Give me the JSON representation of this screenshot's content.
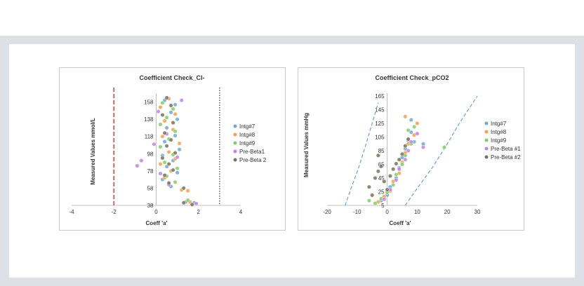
{
  "colors": {
    "background_band": "#dde1e5",
    "series": [
      "#6fa8dc",
      "#f6a04d",
      "#7fcf6a",
      "#c183e8",
      "#7a7358"
    ],
    "cutoff_red": "#e8403a",
    "cutoff_black": "#333333",
    "limit_blue": "#5b9bd5"
  },
  "chart_data": [
    {
      "type": "scatter",
      "title": "Coefficient Check_Cl-",
      "xlabel": "Coeff 'a'",
      "ylabel": "Measured Values mmol/L",
      "xlim": [
        -4,
        4
      ],
      "ylim": [
        38,
        165
      ],
      "x_ticks": [
        "-4",
        "-2",
        "0",
        "2",
        "4"
      ],
      "y_ticks": [
        "38",
        "58",
        "78",
        "98",
        "118",
        "138",
        "158"
      ],
      "grid": false,
      "legend_position": "right",
      "reference_lines": [
        {
          "type": "vertical",
          "x": -2,
          "style": "dashed",
          "color": "#e8403a"
        },
        {
          "type": "vertical",
          "x": 3,
          "style": "dotted",
          "color": "#333333"
        }
      ],
      "series": [
        {
          "name": "Intg#7",
          "points": [
            [
              0.4,
              160
            ],
            [
              0.9,
              155
            ],
            [
              0.7,
              146
            ],
            [
              1.0,
              138
            ],
            [
              0.5,
              128
            ],
            [
              0.9,
              119
            ],
            [
              0.4,
              112
            ],
            [
              1.1,
              103
            ],
            [
              0.3,
              96
            ],
            [
              0.8,
              90
            ],
            [
              0.5,
              83
            ],
            [
              1.0,
              76
            ],
            [
              0.3,
              68
            ],
            [
              0.7,
              60
            ],
            [
              1.4,
              42
            ],
            [
              1.8,
              41
            ]
          ]
        },
        {
          "name": "Intg#8",
          "points": [
            [
              0.6,
              162
            ],
            [
              0.2,
              152
            ],
            [
              0.9,
              144
            ],
            [
              0.4,
              136
            ],
            [
              0.8,
              126
            ],
            [
              0.3,
              118
            ],
            [
              1.1,
              110
            ],
            [
              0.6,
              100
            ],
            [
              0.9,
              92
            ],
            [
              0.2,
              86
            ],
            [
              0.7,
              78
            ],
            [
              0.4,
              70
            ],
            [
              1.2,
              56
            ],
            [
              1.5,
              55
            ],
            [
              1.6,
              42
            ]
          ]
        },
        {
          "name": "Intg#9",
          "points": [
            [
              0.3,
              157
            ],
            [
              0.8,
              150
            ],
            [
              0.5,
              140
            ],
            [
              0.2,
              132
            ],
            [
              0.9,
              124
            ],
            [
              0.6,
              115
            ],
            [
              0.2,
              106
            ],
            [
              0.8,
              97
            ],
            [
              0.4,
              88
            ],
            [
              1.0,
              81
            ],
            [
              0.5,
              72
            ],
            [
              0.9,
              65
            ],
            [
              1.5,
              44
            ]
          ]
        },
        {
          "name": "Pre-Beta1",
          "points": [
            [
              1.2,
              160
            ],
            [
              0.1,
              147
            ],
            [
              0.5,
              121
            ],
            [
              -0.1,
              109
            ],
            [
              1.0,
              94
            ],
            [
              -0.7,
              90
            ],
            [
              -0.9,
              84
            ],
            [
              0.2,
              75
            ],
            [
              0.6,
              62
            ],
            [
              1.9,
              40
            ]
          ]
        },
        {
          "name": "Pre-Beta 2",
          "points": [
            [
              0.5,
              163
            ],
            [
              0.7,
              154
            ],
            [
              0.3,
              143
            ],
            [
              0.8,
              134
            ],
            [
              0.4,
              122
            ],
            [
              0.7,
              114
            ],
            [
              0.5,
              107
            ],
            [
              0.9,
              99
            ],
            [
              0.3,
              93
            ],
            [
              0.6,
              86
            ],
            [
              0.8,
              79
            ],
            [
              0.4,
              73
            ],
            [
              0.6,
              64
            ],
            [
              1.3,
              58
            ],
            [
              1.3,
              41
            ],
            [
              1.7,
              39
            ]
          ]
        }
      ]
    },
    {
      "type": "scatter",
      "title": "Coefficient Check_pCO2",
      "xlabel": "Coeff 'a'",
      "ylabel": "Measured Values mmHg",
      "xlim": [
        -20,
        30
      ],
      "ylim": [
        5,
        165
      ],
      "x_ticks": [
        "-20",
        "-10",
        "0",
        "10",
        "20",
        "30"
      ],
      "y_ticks": [
        "5",
        "25",
        "45",
        "65",
        "85",
        "105",
        "125",
        "145",
        "165"
      ],
      "grid": false,
      "legend_position": "right",
      "limit_curves": [
        {
          "style": "dashed",
          "color": "#5b9bd5",
          "points": [
            [
              -14,
              5
            ],
            [
              -12,
              30
            ],
            [
              -9.5,
              60
            ],
            [
              -7,
              95
            ],
            [
              -5,
              125
            ],
            [
              -3,
              155
            ]
          ]
        },
        {
          "style": "dashed",
          "color": "#5b9bd5",
          "points": [
            [
              6,
              5
            ],
            [
              10,
              30
            ],
            [
              15,
              60
            ],
            [
              20,
              95
            ],
            [
              24,
              125
            ],
            [
              30,
              165
            ]
          ]
        }
      ],
      "series": [
        {
          "name": "Intg#7",
          "points": [
            [
              -2,
              12
            ],
            [
              0,
              20
            ],
            [
              1,
              32
            ],
            [
              3,
              45
            ],
            [
              4,
              60
            ],
            [
              5,
              75
            ],
            [
              6,
              88
            ],
            [
              7,
              100
            ],
            [
              8,
              112
            ],
            [
              8,
              130
            ],
            [
              9,
              98
            ],
            [
              12,
              95
            ]
          ]
        },
        {
          "name": "Intg#8",
          "points": [
            [
              -3,
              10
            ],
            [
              -1,
              18
            ],
            [
              1,
              26
            ],
            [
              2,
              40
            ],
            [
              4,
              52
            ],
            [
              5,
              68
            ],
            [
              6,
              82
            ],
            [
              7,
              95
            ],
            [
              9,
              108
            ],
            [
              6,
              135
            ],
            [
              10,
              125
            ]
          ]
        },
        {
          "name": "Intg#9",
          "points": [
            [
              -4,
              8
            ],
            [
              -6,
              12
            ],
            [
              -2,
              15
            ],
            [
              0,
              24
            ],
            [
              2,
              35
            ],
            [
              3,
              50
            ],
            [
              5,
              65
            ],
            [
              6,
              78
            ],
            [
              8,
              95
            ],
            [
              7,
              115
            ],
            [
              9,
              120
            ],
            [
              19,
              90
            ]
          ]
        },
        {
          "name": "Pre-Beta #1",
          "points": [
            [
              -1,
              14
            ],
            [
              1,
              28
            ],
            [
              3,
              42
            ],
            [
              4,
              58
            ],
            [
              6,
              72
            ],
            [
              7,
              85
            ],
            [
              8,
              98
            ],
            [
              10,
              110
            ],
            [
              12,
              90
            ]
          ]
        },
        {
          "name": "Pre-Beta #2",
          "points": [
            [
              -6,
              32
            ],
            [
              -4,
              45
            ],
            [
              -3,
              55
            ],
            [
              -2,
              62
            ],
            [
              -1,
              40
            ],
            [
              0,
              28
            ],
            [
              1,
              48
            ],
            [
              2,
              58
            ],
            [
              3,
              66
            ],
            [
              4,
              72
            ],
            [
              5,
              80
            ],
            [
              6,
              92
            ],
            [
              7,
              102
            ],
            [
              -3,
              78
            ],
            [
              -5,
              20
            ]
          ]
        }
      ]
    }
  ]
}
